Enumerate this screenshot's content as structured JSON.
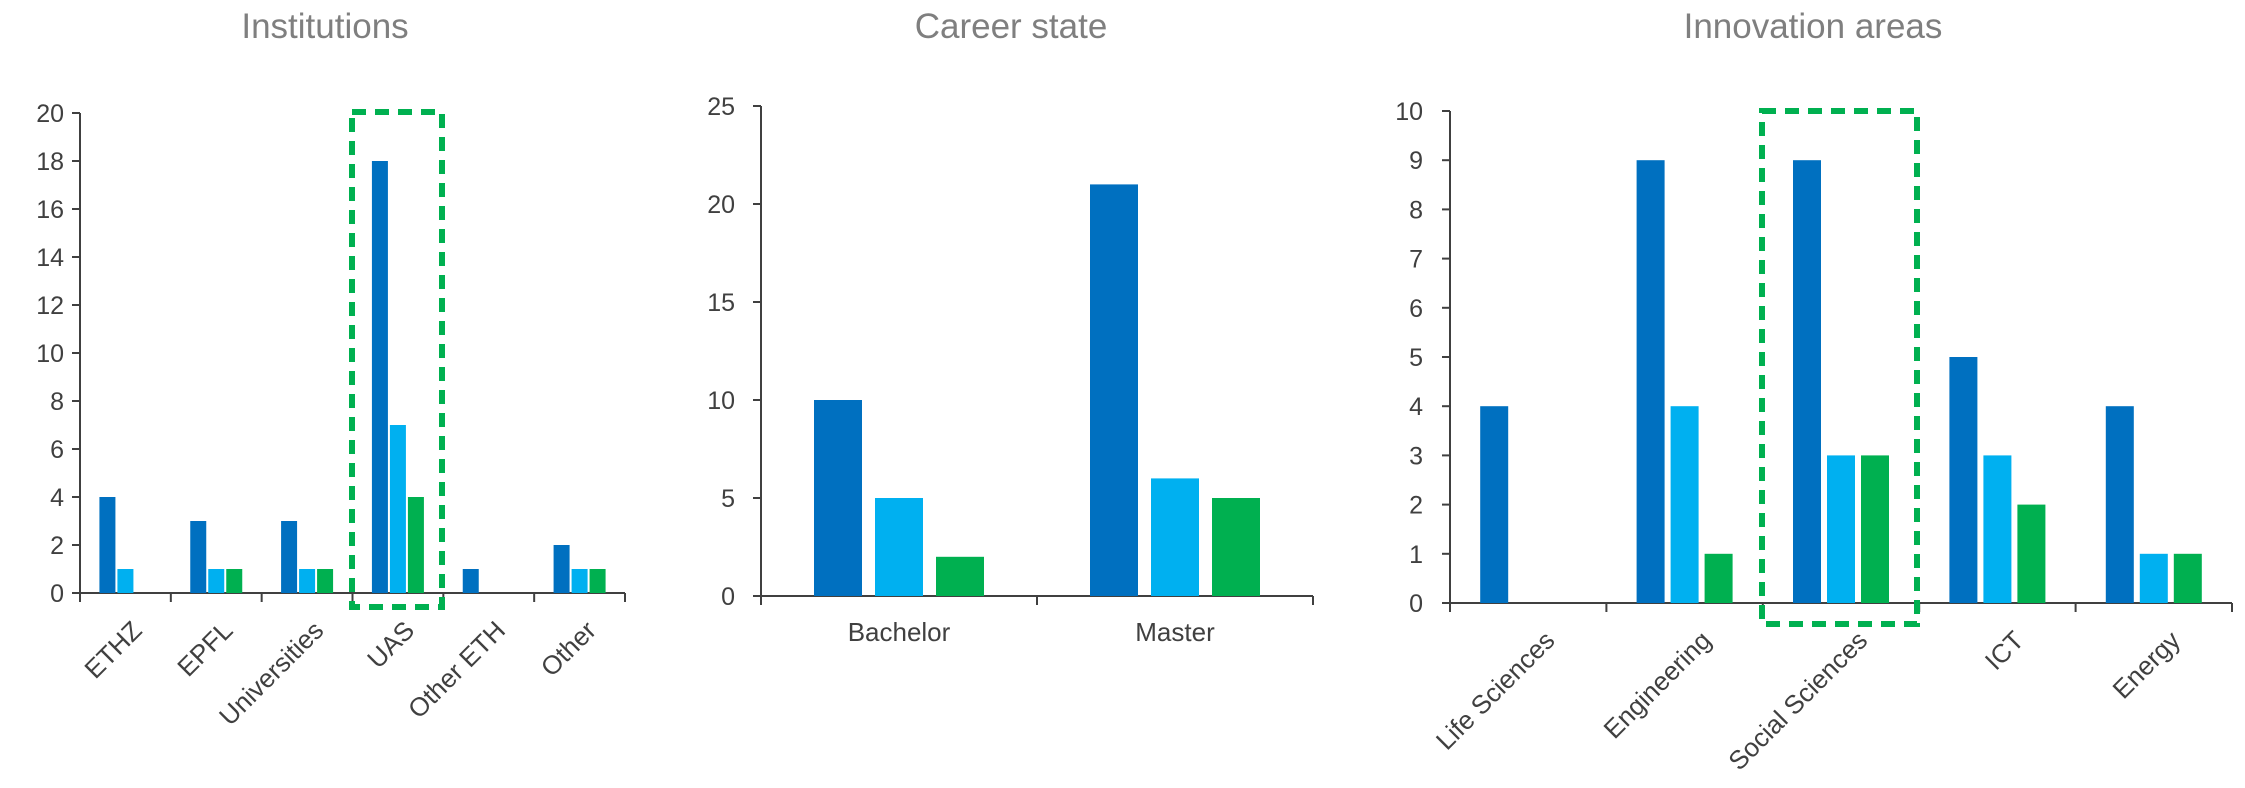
{
  "chart_data": [
    {
      "type": "bar",
      "title": "Institutions",
      "categories": [
        "ETHZ",
        "EPFL",
        "Universities",
        "UAS",
        "Other ETH",
        "Other"
      ],
      "series": [
        {
          "values": [
            4,
            3,
            3,
            18,
            1,
            2
          ],
          "color": "#0070c0"
        },
        {
          "values": [
            1,
            1,
            1,
            7,
            0,
            1
          ],
          "color": "#00b0f0"
        },
        {
          "values": [
            0,
            1,
            1,
            4,
            0,
            1
          ],
          "color": "#00b050"
        }
      ],
      "ylim": [
        0,
        20
      ],
      "yticks": [
        0,
        2,
        4,
        6,
        8,
        10,
        12,
        14,
        16,
        18,
        20
      ],
      "highlight": "UAS",
      "xlabel_rotation": "diagonal"
    },
    {
      "type": "bar",
      "title": "Career state",
      "categories": [
        "Bachelor",
        "Master"
      ],
      "series": [
        {
          "values": [
            10,
            21
          ],
          "color": "#0070c0"
        },
        {
          "values": [
            5,
            6
          ],
          "color": "#00b0f0"
        },
        {
          "values": [
            2,
            5
          ],
          "color": "#00b050"
        }
      ],
      "ylim": [
        0,
        25
      ],
      "yticks": [
        0,
        5,
        10,
        15,
        20,
        25
      ],
      "xlabel_rotation": "none"
    },
    {
      "type": "bar",
      "title": "Innovation areas",
      "categories": [
        "Life Sciences",
        "Engineering",
        "Social Sciences",
        "ICT",
        "Energy"
      ],
      "series": [
        {
          "values": [
            4,
            9,
            9,
            5,
            4
          ],
          "color": "#0070c0"
        },
        {
          "values": [
            0,
            4,
            3,
            3,
            1
          ],
          "color": "#00b0f0"
        },
        {
          "values": [
            0,
            1,
            3,
            2,
            1
          ],
          "color": "#00b050"
        }
      ],
      "ylim": [
        0,
        10
      ],
      "yticks": [
        0,
        1,
        2,
        3,
        4,
        5,
        6,
        7,
        8,
        9,
        10
      ],
      "highlight": "Social Sciences",
      "xlabel_rotation": "diagonal"
    }
  ]
}
